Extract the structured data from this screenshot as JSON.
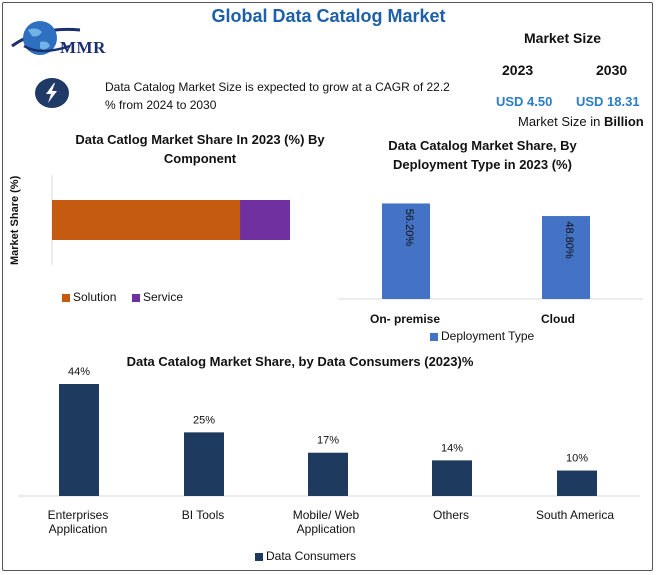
{
  "header": {
    "title": "Global Data Catalog Market",
    "logo_text": "MMR",
    "logo_icon": "globe-icon",
    "cagr_icon": "lightning-bolt-icon",
    "cagr_text": "Data Catalog Market Size is expected to grow at a CAGR of 22.2 % from 2024 to 2030"
  },
  "market_size": {
    "title": "Market Size",
    "years": [
      "2023",
      "2030"
    ],
    "values": [
      "USD 4.50",
      "USD 18.31"
    ],
    "unit_prefix": "Market Size in ",
    "unit_bold": "Billion"
  },
  "colors": {
    "solution": "#c55a11",
    "service": "#7030a0",
    "deployment": "#4472c4",
    "consumers": "#1f3a5f",
    "title_blue": "#1d5fa8",
    "value_blue": "#2a7bc8"
  },
  "chart_data": [
    {
      "type": "bar",
      "orientation": "horizontal-stacked",
      "title": "Data Catlog Market Share In 2023 (%) By Component",
      "ylabel": "Market Share (%)",
      "series": [
        {
          "name": "Solution",
          "values": [
            79
          ]
        },
        {
          "name": "Service",
          "values": [
            21
          ]
        }
      ],
      "xlim": [
        0,
        100
      ],
      "legend": "bottom"
    },
    {
      "type": "bar",
      "title": "Data Catalog Market Share, By Deployment Type in 2023 (%)",
      "categories": [
        "On- premise",
        "Cloud"
      ],
      "series": [
        {
          "name": "Deployment Type",
          "values": [
            56.2,
            48.8
          ],
          "labels": [
            "56.20%",
            "48.80%"
          ]
        }
      ],
      "ylim": [
        0,
        60
      ],
      "legend": "bottom"
    },
    {
      "type": "bar",
      "title": "Data Catalog Market Share, by Data Consumers (2023)%",
      "categories": [
        "Enterprises Application",
        "BI Tools",
        "Mobile/ Web Application",
        "Others",
        "South America"
      ],
      "category_lines": [
        [
          "Enterprises",
          "Application"
        ],
        [
          "BI Tools"
        ],
        [
          "Mobile/ Web",
          "Application"
        ],
        [
          "Others"
        ],
        [
          "South America"
        ]
      ],
      "series": [
        {
          "name": "Data Consumers",
          "values": [
            44,
            25,
            17,
            14,
            10
          ],
          "labels": [
            "44%",
            "25%",
            "17%",
            "14%",
            "10%"
          ]
        }
      ],
      "ylim": [
        0,
        44
      ],
      "legend": "bottom"
    }
  ]
}
